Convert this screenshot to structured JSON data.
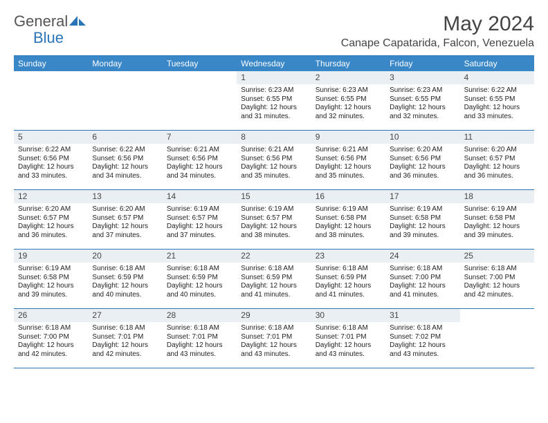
{
  "brand": {
    "part1": "General",
    "part2": "Blue"
  },
  "title": "May 2024",
  "location": "Canape Capatarida, Falcon, Venezuela",
  "colors": {
    "header_bg": "#3a87c8",
    "header_text": "#ffffff",
    "border": "#2a74b8",
    "daynum_bg": "#eaeff3",
    "text": "#222222",
    "logo_gray": "#555555",
    "logo_blue": "#2a74b8",
    "background": "#ffffff"
  },
  "typography": {
    "title_fontsize": 30,
    "location_fontsize": 16,
    "dayhead_fontsize": 12,
    "daynum_fontsize": 12,
    "body_fontsize": 10,
    "font_family": "Arial"
  },
  "layout": {
    "columns": 7,
    "week_start": "Sunday",
    "leading_blanks": 3
  },
  "weekdays": [
    "Sunday",
    "Monday",
    "Tuesday",
    "Wednesday",
    "Thursday",
    "Friday",
    "Saturday"
  ],
  "days": [
    {
      "n": 1,
      "sunrise": "6:23 AM",
      "sunset": "6:55 PM",
      "daylight": "12 hours and 31 minutes."
    },
    {
      "n": 2,
      "sunrise": "6:23 AM",
      "sunset": "6:55 PM",
      "daylight": "12 hours and 32 minutes."
    },
    {
      "n": 3,
      "sunrise": "6:23 AM",
      "sunset": "6:55 PM",
      "daylight": "12 hours and 32 minutes."
    },
    {
      "n": 4,
      "sunrise": "6:22 AM",
      "sunset": "6:55 PM",
      "daylight": "12 hours and 33 minutes."
    },
    {
      "n": 5,
      "sunrise": "6:22 AM",
      "sunset": "6:56 PM",
      "daylight": "12 hours and 33 minutes."
    },
    {
      "n": 6,
      "sunrise": "6:22 AM",
      "sunset": "6:56 PM",
      "daylight": "12 hours and 34 minutes."
    },
    {
      "n": 7,
      "sunrise": "6:21 AM",
      "sunset": "6:56 PM",
      "daylight": "12 hours and 34 minutes."
    },
    {
      "n": 8,
      "sunrise": "6:21 AM",
      "sunset": "6:56 PM",
      "daylight": "12 hours and 35 minutes."
    },
    {
      "n": 9,
      "sunrise": "6:21 AM",
      "sunset": "6:56 PM",
      "daylight": "12 hours and 35 minutes."
    },
    {
      "n": 10,
      "sunrise": "6:20 AM",
      "sunset": "6:56 PM",
      "daylight": "12 hours and 36 minutes."
    },
    {
      "n": 11,
      "sunrise": "6:20 AM",
      "sunset": "6:57 PM",
      "daylight": "12 hours and 36 minutes."
    },
    {
      "n": 12,
      "sunrise": "6:20 AM",
      "sunset": "6:57 PM",
      "daylight": "12 hours and 36 minutes."
    },
    {
      "n": 13,
      "sunrise": "6:20 AM",
      "sunset": "6:57 PM",
      "daylight": "12 hours and 37 minutes."
    },
    {
      "n": 14,
      "sunrise": "6:19 AM",
      "sunset": "6:57 PM",
      "daylight": "12 hours and 37 minutes."
    },
    {
      "n": 15,
      "sunrise": "6:19 AM",
      "sunset": "6:57 PM",
      "daylight": "12 hours and 38 minutes."
    },
    {
      "n": 16,
      "sunrise": "6:19 AM",
      "sunset": "6:58 PM",
      "daylight": "12 hours and 38 minutes."
    },
    {
      "n": 17,
      "sunrise": "6:19 AM",
      "sunset": "6:58 PM",
      "daylight": "12 hours and 39 minutes."
    },
    {
      "n": 18,
      "sunrise": "6:19 AM",
      "sunset": "6:58 PM",
      "daylight": "12 hours and 39 minutes."
    },
    {
      "n": 19,
      "sunrise": "6:19 AM",
      "sunset": "6:58 PM",
      "daylight": "12 hours and 39 minutes."
    },
    {
      "n": 20,
      "sunrise": "6:18 AM",
      "sunset": "6:59 PM",
      "daylight": "12 hours and 40 minutes."
    },
    {
      "n": 21,
      "sunrise": "6:18 AM",
      "sunset": "6:59 PM",
      "daylight": "12 hours and 40 minutes."
    },
    {
      "n": 22,
      "sunrise": "6:18 AM",
      "sunset": "6:59 PM",
      "daylight": "12 hours and 41 minutes."
    },
    {
      "n": 23,
      "sunrise": "6:18 AM",
      "sunset": "6:59 PM",
      "daylight": "12 hours and 41 minutes."
    },
    {
      "n": 24,
      "sunrise": "6:18 AM",
      "sunset": "7:00 PM",
      "daylight": "12 hours and 41 minutes."
    },
    {
      "n": 25,
      "sunrise": "6:18 AM",
      "sunset": "7:00 PM",
      "daylight": "12 hours and 42 minutes."
    },
    {
      "n": 26,
      "sunrise": "6:18 AM",
      "sunset": "7:00 PM",
      "daylight": "12 hours and 42 minutes."
    },
    {
      "n": 27,
      "sunrise": "6:18 AM",
      "sunset": "7:01 PM",
      "daylight": "12 hours and 42 minutes."
    },
    {
      "n": 28,
      "sunrise": "6:18 AM",
      "sunset": "7:01 PM",
      "daylight": "12 hours and 43 minutes."
    },
    {
      "n": 29,
      "sunrise": "6:18 AM",
      "sunset": "7:01 PM",
      "daylight": "12 hours and 43 minutes."
    },
    {
      "n": 30,
      "sunrise": "6:18 AM",
      "sunset": "7:01 PM",
      "daylight": "12 hours and 43 minutes."
    },
    {
      "n": 31,
      "sunrise": "6:18 AM",
      "sunset": "7:02 PM",
      "daylight": "12 hours and 43 minutes."
    }
  ],
  "labels": {
    "sunrise": "Sunrise:",
    "sunset": "Sunset:",
    "daylight": "Daylight:"
  }
}
